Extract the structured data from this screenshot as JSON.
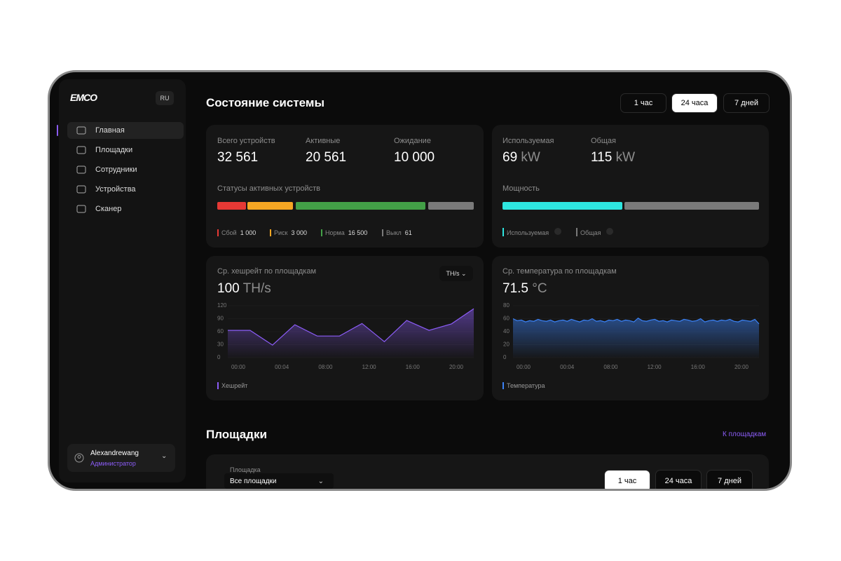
{
  "sidebar": {
    "logo": "EMCO",
    "language": "RU",
    "nav": [
      "Главная",
      "Площадки",
      "Сотрудники",
      "Устройства",
      "Сканер"
    ],
    "active_nav": 0,
    "user": {
      "name": "Alexandrewang",
      "role": "Администратор"
    }
  },
  "header": {
    "title": "Состояние системы",
    "ranges": [
      "1 час",
      "24 часа",
      "7 дней"
    ],
    "active_range": 1
  },
  "devices": {
    "stats": [
      {
        "label": "Всего устройств",
        "value": "32 561"
      },
      {
        "label": "Активные",
        "value": "20 561"
      },
      {
        "label": "Ожидание",
        "value": "10 000"
      }
    ],
    "status_title": "Статусы активных устройств",
    "statuses": [
      {
        "name": "Сбой",
        "value": "1 000",
        "color": "#e53935"
      },
      {
        "name": "Риск",
        "value": "3 000",
        "color": "#f5a623"
      },
      {
        "name": "Норма",
        "value": "16 500",
        "color": "#43a047"
      },
      {
        "name": "Выкл",
        "value": "61",
        "color": "#7a7a7a"
      }
    ]
  },
  "power": {
    "stats": [
      {
        "label": "Используемая",
        "value": "69",
        "unit": "kW"
      },
      {
        "label": "Общая",
        "value": "115",
        "unit": "kW"
      }
    ],
    "title": "Мощность",
    "legend": [
      {
        "name": "Используемая",
        "color": "#2ee6e0"
      },
      {
        "name": "Общая",
        "color": "#7a7a7a"
      }
    ]
  },
  "hashrate_chart": {
    "type": "line",
    "title": "Ср. хешрейт по площадкам",
    "value": "100",
    "unit": "TH/s",
    "dropdown": "TH/s",
    "color": "#8b5cf6",
    "series": [
      {
        "name": "Хешрейт",
        "color": "#8b5cf6",
        "values": [
          63,
          63,
          29,
          76,
          50,
          50,
          79,
          37,
          86,
          63,
          78,
          113
        ]
      }
    ],
    "ylim": [
      0,
      120
    ],
    "yticks": [
      0,
      30,
      60,
      90,
      120
    ],
    "xtick_labels": [
      "00:00",
      "00:04",
      "08:00",
      "12:00",
      "16:00",
      "20:00"
    ]
  },
  "temperature_chart": {
    "type": "line",
    "title": "Ср. температура по площадкам",
    "value": "71.5",
    "unit": "°C",
    "series": [
      {
        "name": "Температура",
        "color": "#3b82f6",
        "values": [
          60,
          57,
          58,
          55,
          57,
          56,
          59,
          57,
          56,
          58,
          55,
          57,
          58,
          56,
          59,
          57,
          55,
          58,
          57,
          60,
          56,
          57,
          55,
          58,
          57,
          59,
          56,
          58,
          57,
          55,
          61,
          57,
          56,
          58,
          59,
          56,
          57,
          55,
          58,
          57,
          56,
          59,
          58,
          56,
          57,
          60,
          55,
          57,
          58,
          56,
          58,
          57,
          59,
          56,
          55,
          58,
          57,
          56,
          59,
          52
        ]
      }
    ],
    "ylim": [
      0,
      80
    ],
    "yticks": [
      0,
      20,
      40,
      60,
      80
    ],
    "xtick_labels": [
      "00:00",
      "00:04",
      "08:00",
      "12:00",
      "16:00",
      "20:00"
    ]
  },
  "sites": {
    "title": "Площадки",
    "link": "К площадкам",
    "filter_label": "Площадка",
    "filter_value": "Все площадки",
    "ranges": [
      "1 час",
      "24 часа",
      "7 дней"
    ],
    "active_range": 0
  }
}
